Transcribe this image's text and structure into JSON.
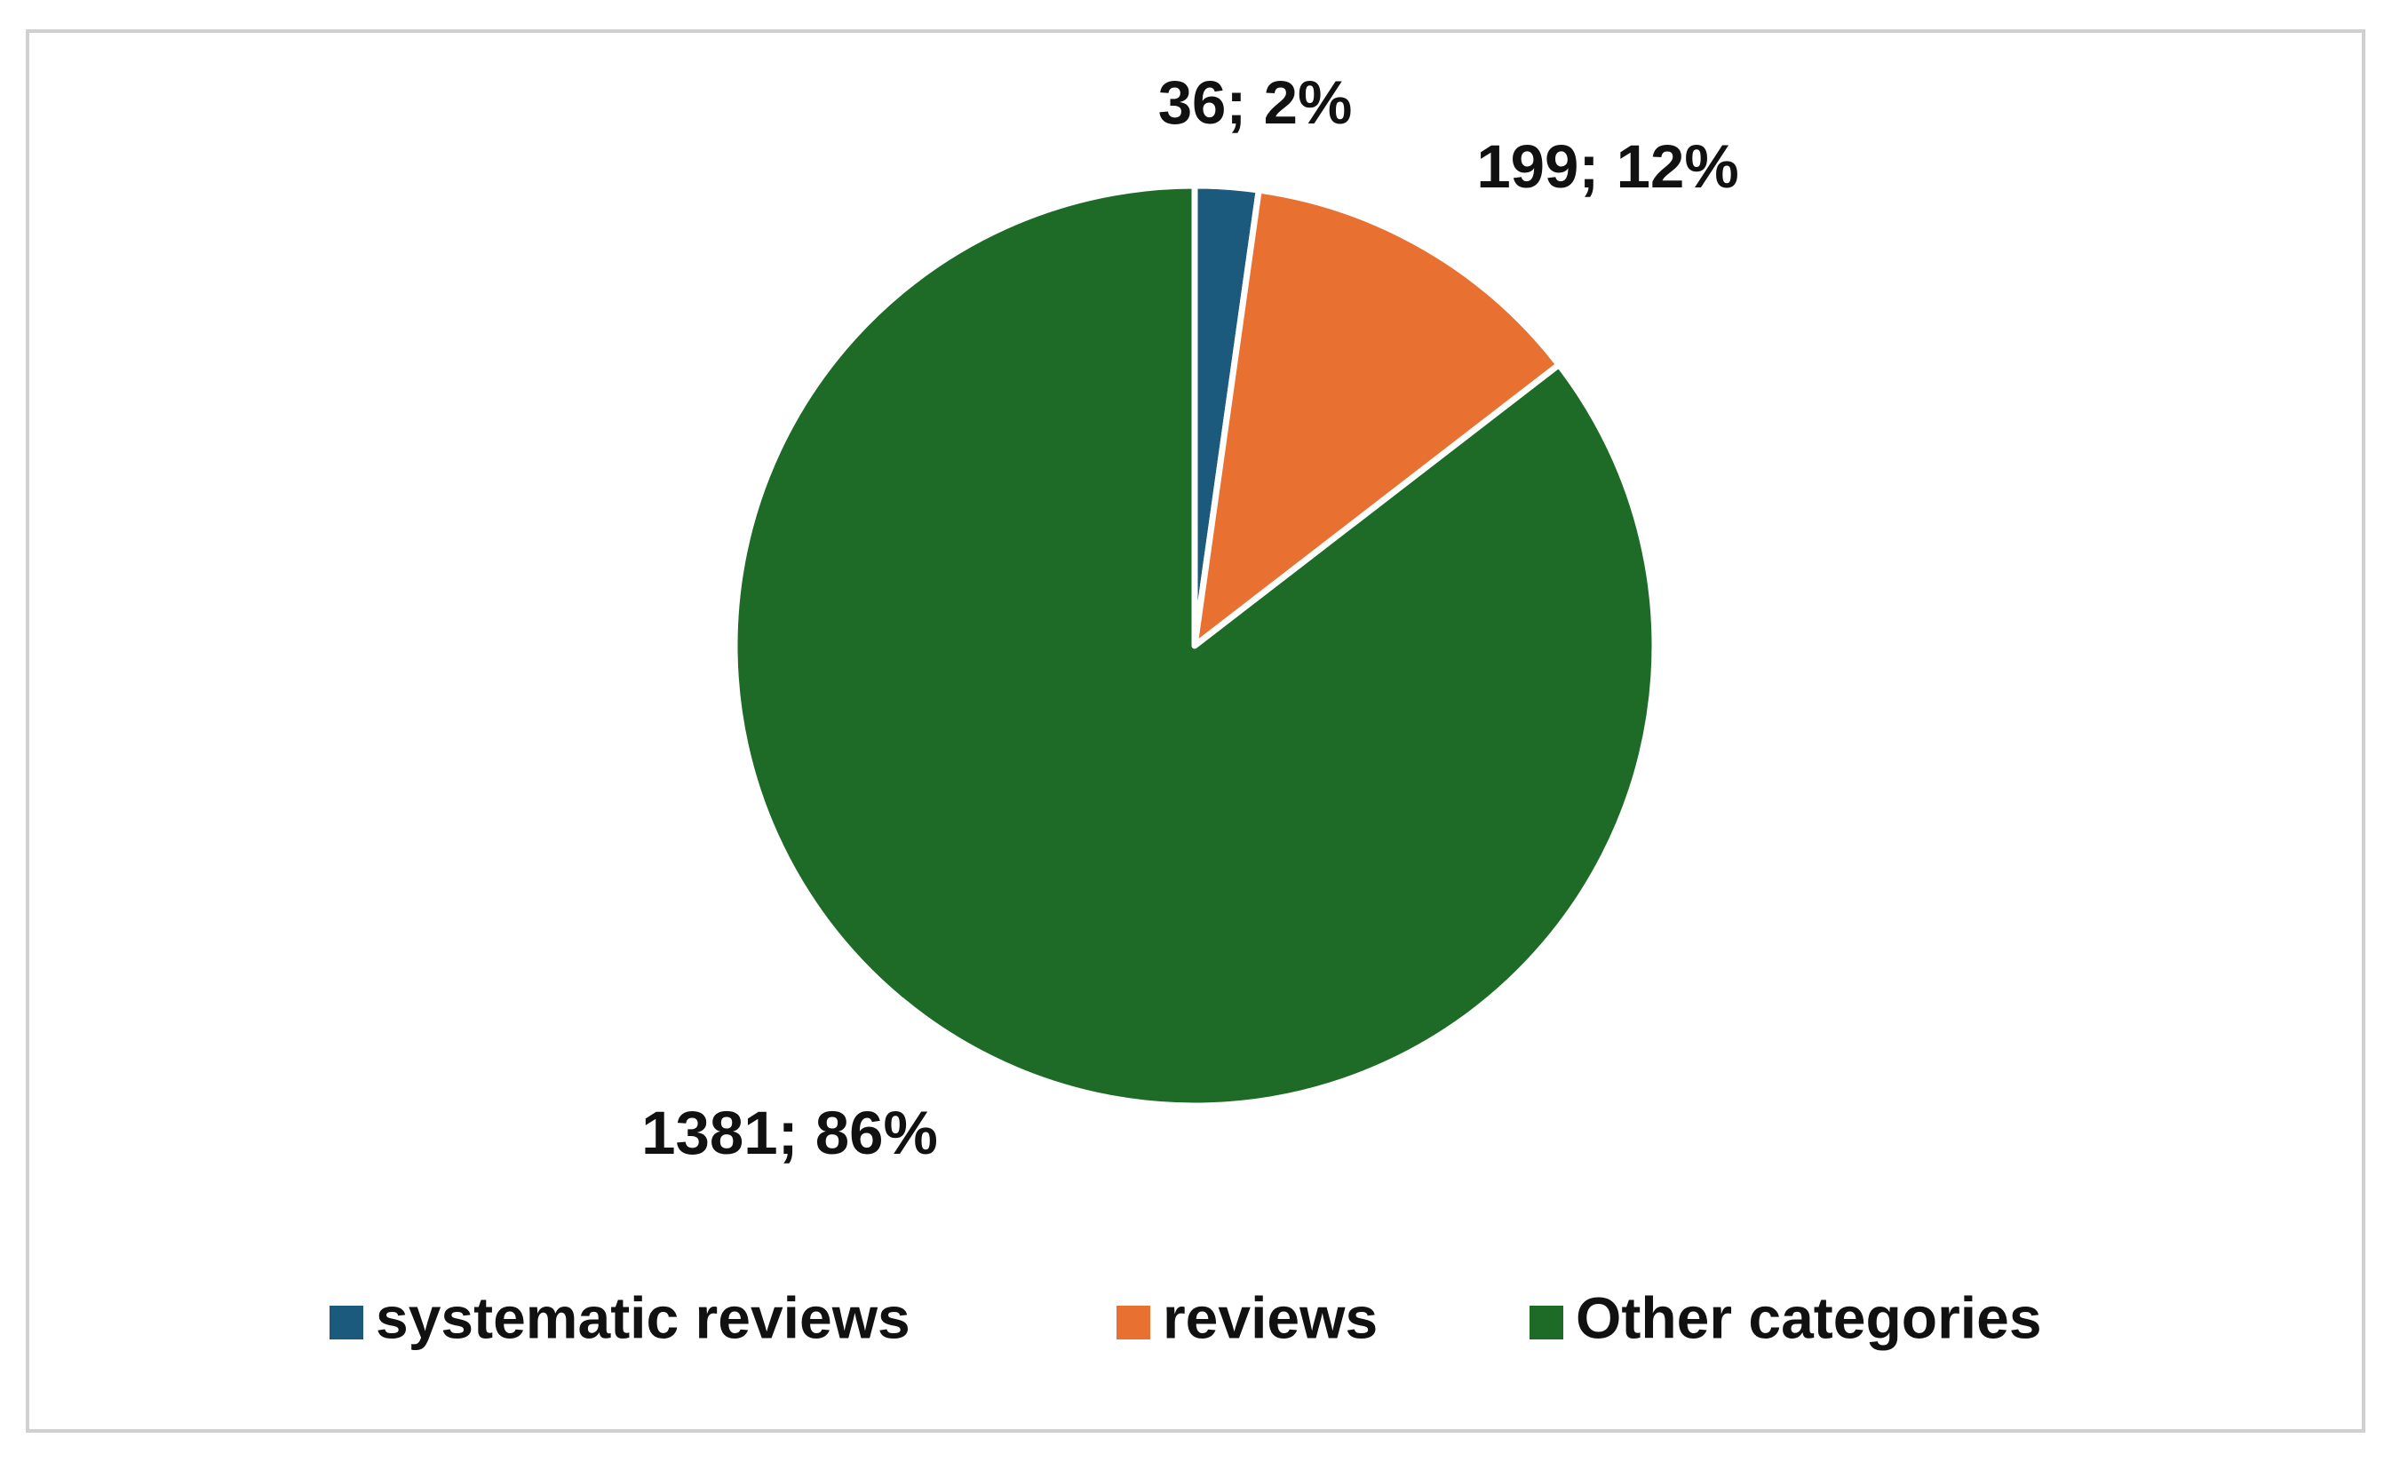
{
  "chart_data": {
    "type": "pie",
    "categories": [
      "systematic reviews",
      "reviews",
      "Other categories"
    ],
    "values": [
      36,
      199,
      1381
    ],
    "value_labels": [
      "36; 2%",
      "199; 12%",
      "1381; 86%"
    ],
    "colors": [
      "#1b5a7c",
      "#e87132",
      "#1e6b27"
    ],
    "legend": "bottom"
  }
}
